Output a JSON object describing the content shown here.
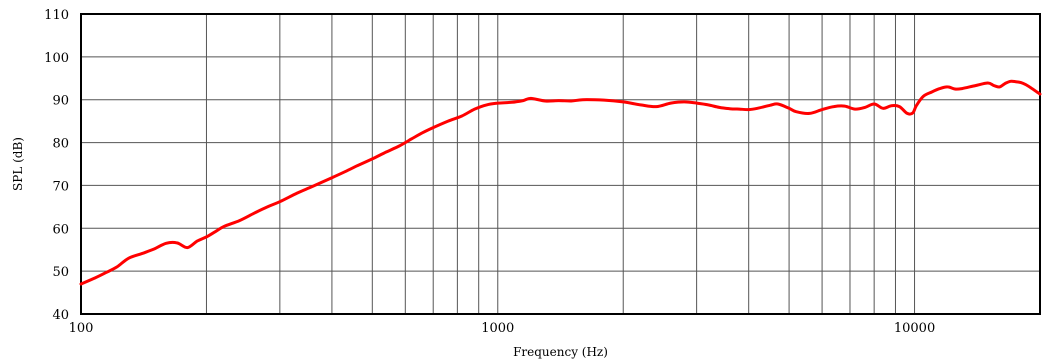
{
  "chart_data": {
    "type": "line",
    "title": "",
    "xlabel": "Frequency (Hz)",
    "ylabel": "SPL (dB)",
    "x_scale": "log",
    "xlim": [
      100,
      20000
    ],
    "ylim": [
      40,
      110
    ],
    "grid": true,
    "x_tick_labels": [
      {
        "value": 100,
        "label": "100"
      },
      {
        "value": 1000,
        "label": "1000"
      },
      {
        "value": 10000,
        "label": "10000"
      }
    ],
    "y_ticks": [
      40,
      50,
      60,
      70,
      80,
      90,
      100,
      110
    ],
    "series": [
      {
        "name": "",
        "color": "#ff0000",
        "x": [
          100,
          108,
          115,
          122,
          130,
          140,
          150,
          160,
          170,
          180,
          190,
          200,
          210,
          220,
          240,
          260,
          280,
          300,
          330,
          360,
          400,
          430,
          460,
          500,
          540,
          580,
          620,
          660,
          700,
          760,
          820,
          880,
          940,
          1000,
          1080,
          1150,
          1200,
          1300,
          1400,
          1500,
          1600,
          1800,
          2000,
          2200,
          2400,
          2600,
          2800,
          3000,
          3200,
          3400,
          3600,
          3800,
          4000,
          4200,
          4500,
          4700,
          5000,
          5200,
          5600,
          6000,
          6400,
          6800,
          7200,
          7600,
          8000,
          8400,
          8800,
          9200,
          9600,
          9900,
          10100,
          10500,
          11000,
          11500,
          12000,
          12500,
          13000,
          14000,
          15000,
          15500,
          16000,
          16500,
          17000,
          17500,
          18000,
          18500,
          19000,
          20000
        ],
        "y": [
          47,
          48.4,
          49.7,
          51,
          53,
          54.1,
          55.2,
          56.5,
          56.6,
          55.5,
          57,
          58,
          59.2,
          60.4,
          61.8,
          63.5,
          65,
          66.2,
          68.2,
          69.8,
          71.8,
          73.2,
          74.6,
          76.2,
          77.8,
          79.2,
          80.8,
          82.3,
          83.5,
          85,
          86.2,
          87.8,
          88.8,
          89.2,
          89.4,
          89.8,
          90.3,
          89.7,
          89.8,
          89.7,
          90,
          89.9,
          89.5,
          88.8,
          88.4,
          89.2,
          89.5,
          89.2,
          88.8,
          88.2,
          87.9,
          87.8,
          87.7,
          88,
          88.7,
          89,
          88,
          87.2,
          86.8,
          87.7,
          88.4,
          88.5,
          87.8,
          88.2,
          89,
          88,
          88.6,
          88.4,
          86.8,
          86.9,
          88.6,
          90.8,
          91.8,
          92.6,
          93,
          92.5,
          92.6,
          93.3,
          93.9,
          93.3,
          93,
          93.8,
          94.3,
          94.2,
          94,
          93.5,
          92.8,
          91.3
        ]
      }
    ]
  }
}
